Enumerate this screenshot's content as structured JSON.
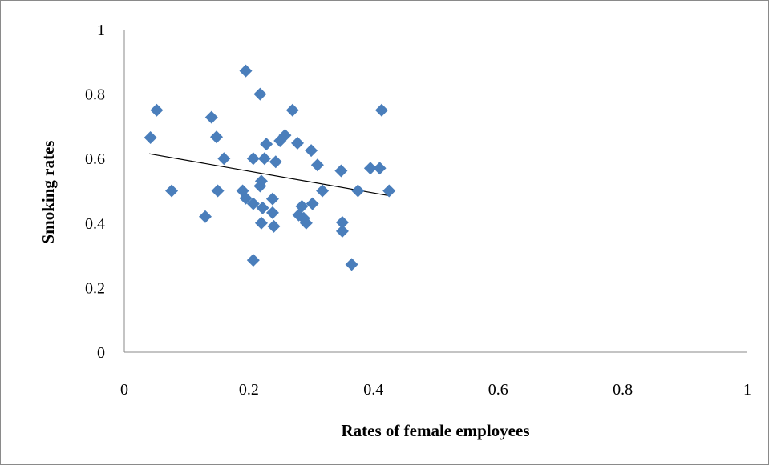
{
  "chart_data": {
    "type": "scatter",
    "title": "",
    "xlabel": "Rates of female employees",
    "ylabel": "Smoking rates",
    "xlim": [
      0,
      1
    ],
    "ylim": [
      0,
      1
    ],
    "x_ticks": [
      "0",
      "0.2",
      "0.4",
      "0.6",
      "0.8",
      "1"
    ],
    "y_ticks": [
      "0",
      "0.2",
      "0.4",
      "0.6",
      "0.8",
      "1"
    ],
    "grid": false,
    "legend": "none",
    "marker": "diamond",
    "marker_color": "#4a7ebb",
    "trendline_color": "#000000",
    "series": [
      {
        "points": [
          [
            0.042,
            0.665
          ],
          [
            0.052,
            0.75
          ],
          [
            0.076,
            0.5
          ],
          [
            0.13,
            0.42
          ],
          [
            0.14,
            0.728
          ],
          [
            0.148,
            0.667
          ],
          [
            0.15,
            0.5
          ],
          [
            0.16,
            0.6
          ],
          [
            0.19,
            0.5
          ],
          [
            0.195,
            0.477
          ],
          [
            0.195,
            0.872
          ],
          [
            0.207,
            0.6
          ],
          [
            0.207,
            0.46
          ],
          [
            0.207,
            0.285
          ],
          [
            0.218,
            0.8
          ],
          [
            0.218,
            0.515
          ],
          [
            0.22,
            0.53
          ],
          [
            0.22,
            0.4
          ],
          [
            0.222,
            0.447
          ],
          [
            0.225,
            0.6
          ],
          [
            0.228,
            0.645
          ],
          [
            0.238,
            0.475
          ],
          [
            0.238,
            0.432
          ],
          [
            0.24,
            0.39
          ],
          [
            0.243,
            0.59
          ],
          [
            0.25,
            0.655
          ],
          [
            0.258,
            0.672
          ],
          [
            0.27,
            0.75
          ],
          [
            0.278,
            0.648
          ],
          [
            0.28,
            0.425
          ],
          [
            0.285,
            0.452
          ],
          [
            0.288,
            0.415
          ],
          [
            0.292,
            0.4
          ],
          [
            0.3,
            0.625
          ],
          [
            0.302,
            0.46
          ],
          [
            0.31,
            0.58
          ],
          [
            0.318,
            0.5
          ],
          [
            0.348,
            0.562
          ],
          [
            0.35,
            0.402
          ],
          [
            0.35,
            0.375
          ],
          [
            0.365,
            0.272
          ],
          [
            0.375,
            0.5
          ],
          [
            0.395,
            0.57
          ],
          [
            0.41,
            0.57
          ],
          [
            0.413,
            0.75
          ],
          [
            0.425,
            0.5
          ]
        ]
      }
    ],
    "trendline": {
      "x": [
        0.04,
        0.425
      ],
      "y": [
        0.615,
        0.485
      ]
    }
  }
}
